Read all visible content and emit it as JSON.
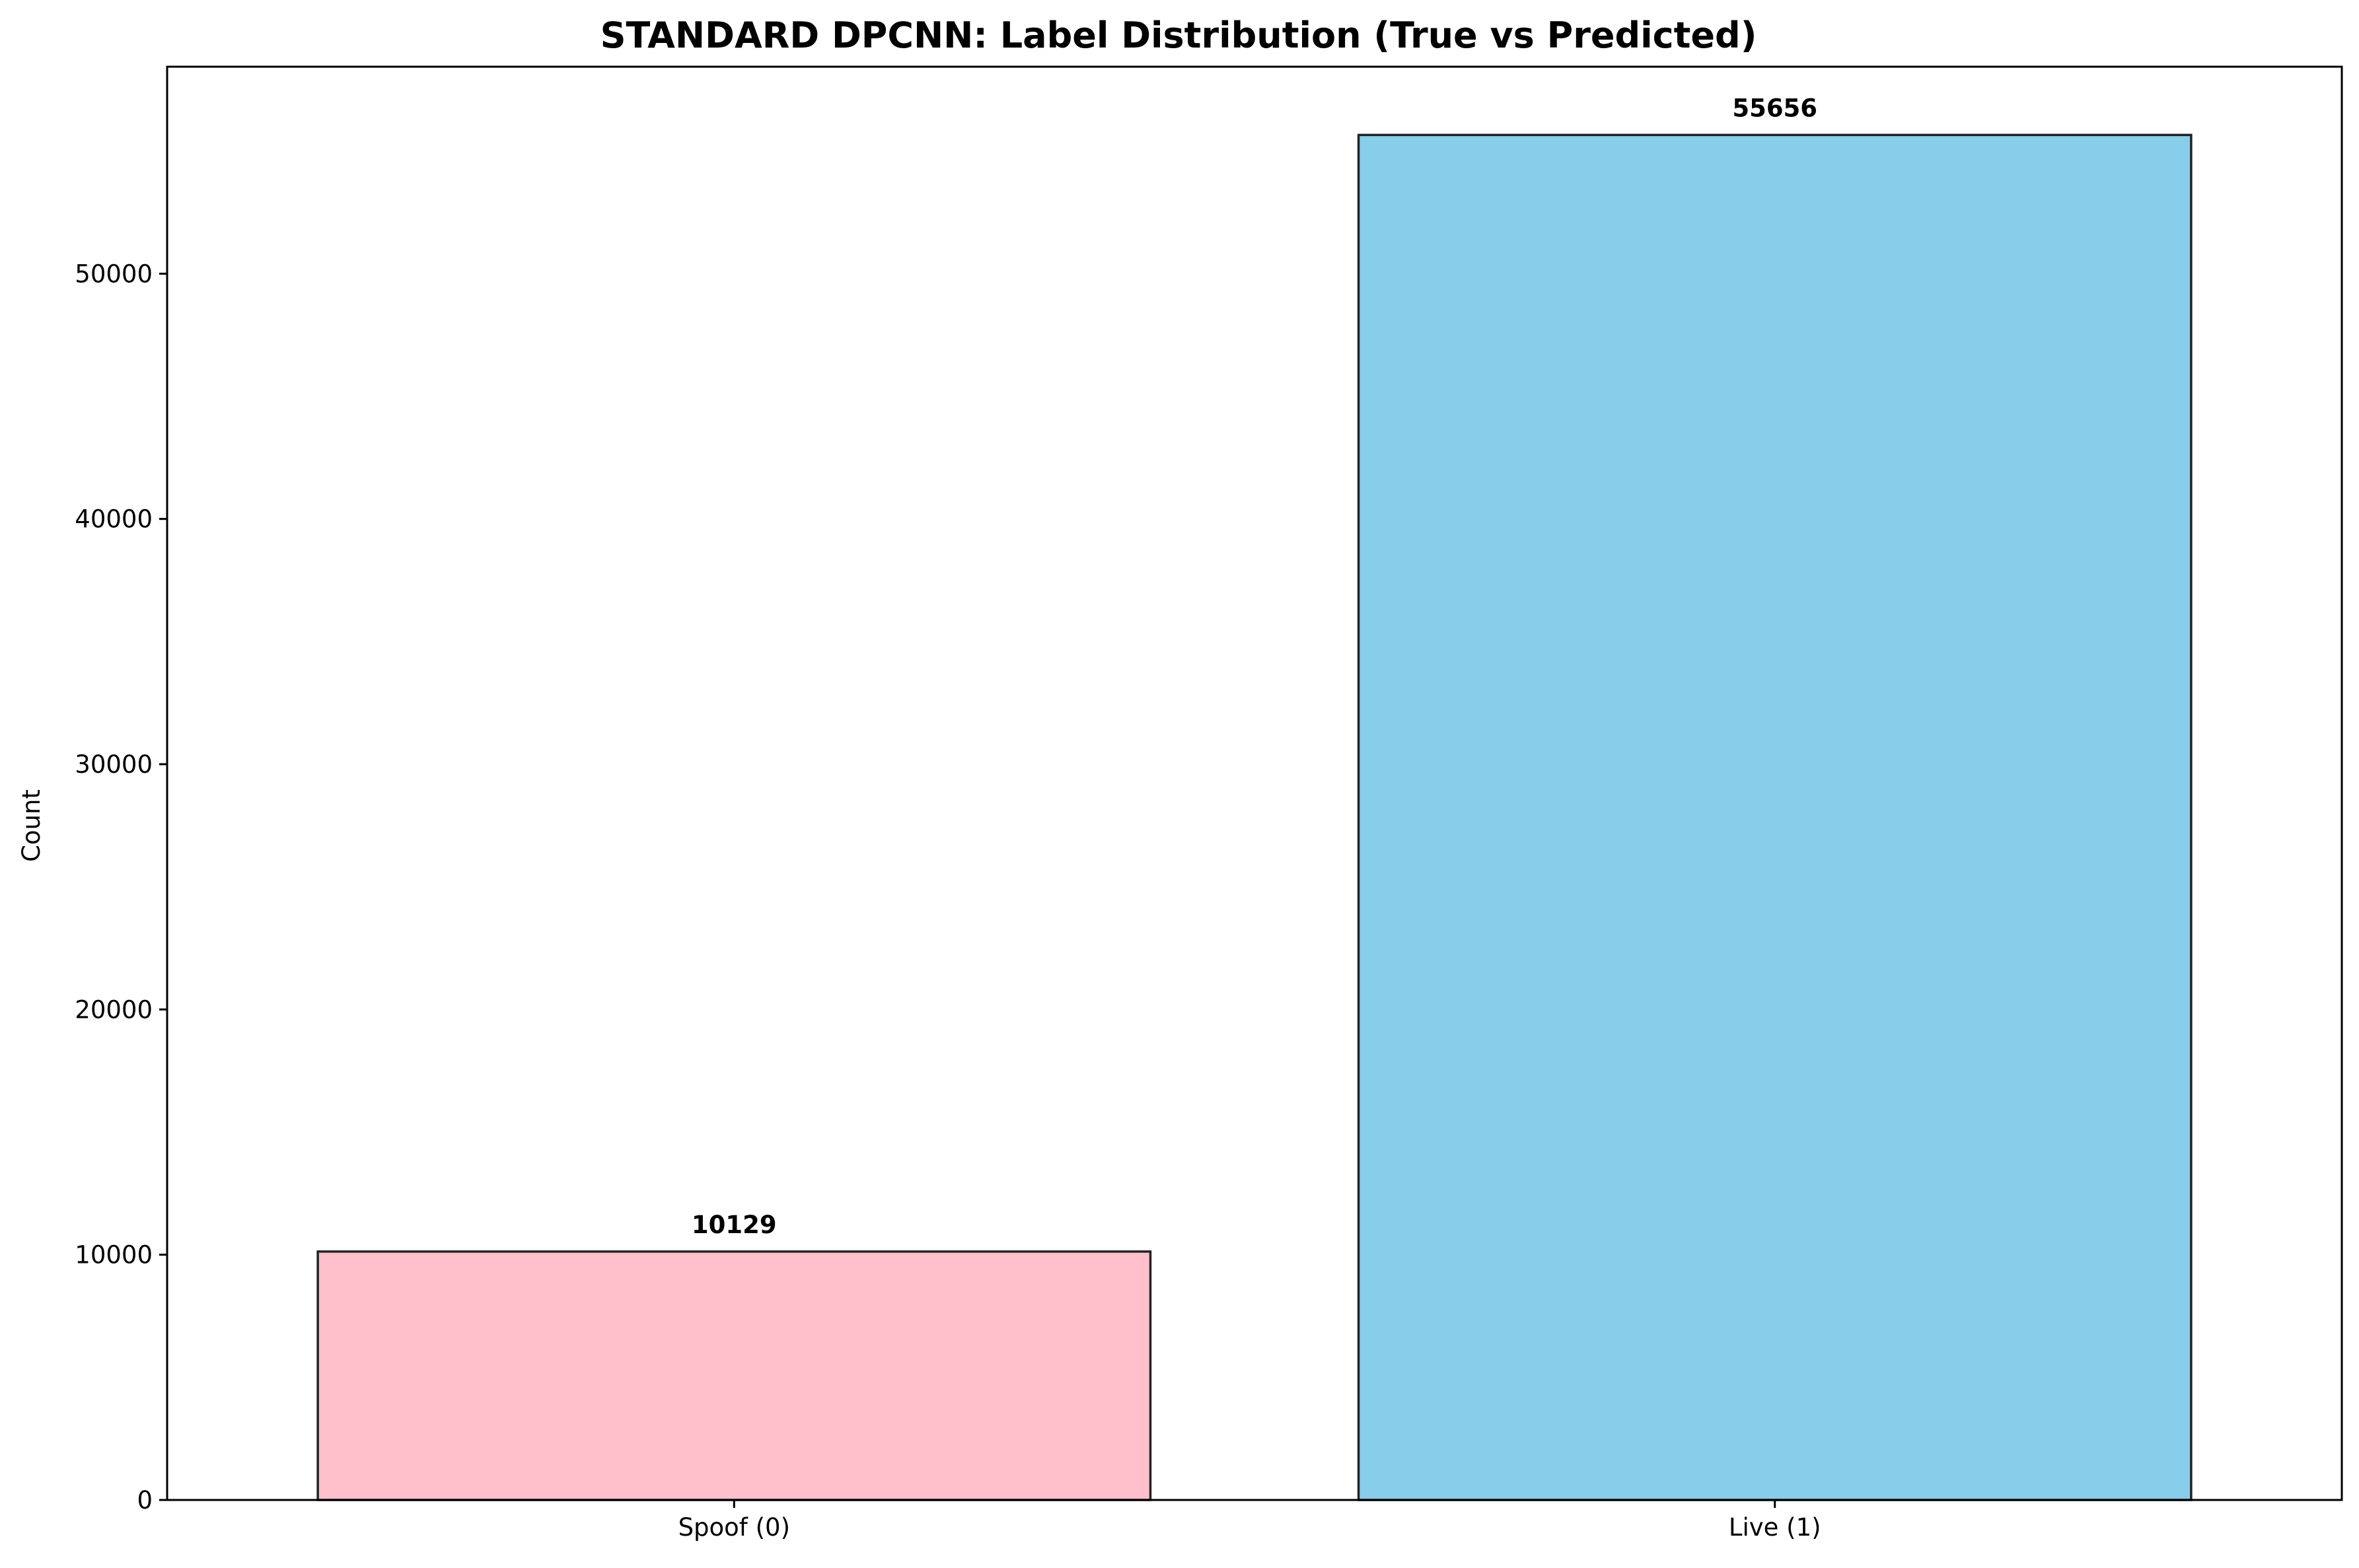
{
  "chart_data": {
    "type": "bar",
    "title": "STANDARD DPCNN: Label Distribution (True vs Predicted)",
    "xlabel": "",
    "ylabel": "Count",
    "categories": [
      "Spoof (0)",
      "Live (1)"
    ],
    "values": [
      10129,
      55656
    ],
    "value_labels": [
      "10129",
      "55656"
    ],
    "colors": [
      "#ffc0cb",
      "#87ceeb"
    ],
    "bar_edge_color": "#222222",
    "ylim": [
      0,
      58439
    ],
    "yticks": [
      0,
      10000,
      20000,
      30000,
      40000,
      50000
    ],
    "ytick_labels": [
      "0",
      "10000",
      "20000",
      "30000",
      "40000",
      "50000"
    ],
    "grid": false,
    "legend": "none"
  }
}
